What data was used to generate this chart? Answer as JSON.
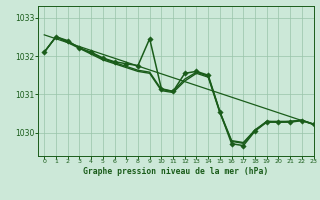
{
  "bg_color": "#cce8d8",
  "line_color": "#1a5c1a",
  "grid_color": "#99c4aa",
  "title": "Graphe pression niveau de la mer (hPa)",
  "xlim": [
    -0.5,
    23
  ],
  "ylim": [
    1029.4,
    1033.3
  ],
  "yticks": [
    1030,
    1031,
    1032,
    1033
  ],
  "xticks": [
    0,
    1,
    2,
    3,
    4,
    5,
    6,
    7,
    8,
    9,
    10,
    11,
    12,
    13,
    14,
    15,
    16,
    17,
    18,
    19,
    20,
    21,
    22,
    23
  ],
  "line1": {
    "x": [
      0,
      1,
      2,
      3,
      4,
      5,
      6,
      7,
      8,
      9,
      10,
      11,
      12,
      13,
      14,
      15,
      16,
      17,
      18,
      19,
      20,
      21,
      22,
      23
    ],
    "y": [
      1032.1,
      1032.5,
      1032.35,
      1032.2,
      1032.05,
      1031.9,
      1031.8,
      1031.7,
      1031.6,
      1031.55,
      1031.1,
      1031.05,
      1031.35,
      1031.55,
      1031.45,
      1030.52,
      1029.78,
      1029.73,
      1030.06,
      1030.3,
      1030.28,
      1030.3,
      1030.33,
      1030.23
    ],
    "linewidth": 1.0
  },
  "line2": {
    "x": [
      0,
      1,
      2,
      3,
      4,
      5,
      6,
      7,
      8,
      9,
      10,
      11,
      12,
      13,
      14,
      15,
      16,
      17,
      18,
      19,
      20,
      21,
      22,
      23
    ],
    "y": [
      1032.1,
      1032.5,
      1032.38,
      1032.22,
      1032.08,
      1031.93,
      1031.83,
      1031.73,
      1031.63,
      1031.58,
      1031.13,
      1031.08,
      1031.4,
      1031.58,
      1031.48,
      1030.55,
      1029.8,
      1029.75,
      1030.08,
      1030.3,
      1030.3,
      1030.3,
      1030.33,
      1030.23
    ],
    "linewidth": 1.0
  },
  "line3_marker": {
    "x": [
      0,
      1,
      2,
      3,
      4,
      5,
      6,
      7,
      8,
      9,
      10,
      11,
      12,
      13,
      14,
      15,
      16,
      17,
      18,
      19,
      20,
      21,
      22,
      23
    ],
    "y": [
      1032.1,
      1032.5,
      1032.4,
      1032.2,
      1032.1,
      1031.95,
      1031.85,
      1031.8,
      1031.75,
      1032.45,
      1031.15,
      1031.08,
      1031.55,
      1031.6,
      1031.5,
      1030.55,
      1029.72,
      1029.67,
      1030.05,
      1030.28,
      1030.28,
      1030.28,
      1030.32,
      1030.22
    ],
    "linewidth": 1.1,
    "markersize": 2.8
  },
  "line4_straight": {
    "x": [
      0,
      23
    ],
    "y": [
      1032.55,
      1030.22
    ],
    "linewidth": 0.9
  }
}
